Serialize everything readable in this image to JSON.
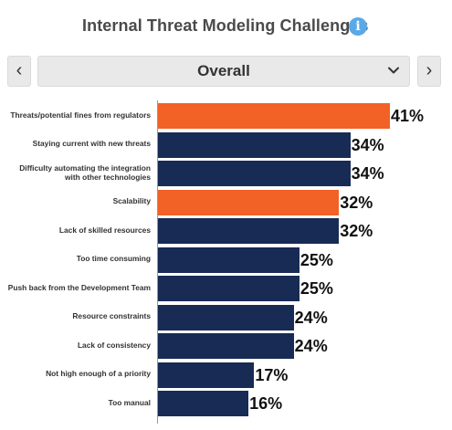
{
  "header": {
    "title": "Internal Threat Modeling Challenges",
    "info_icon": "info-icon"
  },
  "selector": {
    "prev_icon": "chevron-left-icon",
    "prev_glyph": "‹",
    "selected_value": "Overall",
    "dropdown_icon": "chevron-down-icon",
    "next_icon": "chevron-right-icon",
    "next_glyph": "›"
  },
  "colors": {
    "highlight": "#f26125",
    "default": "#172b55",
    "info": "#5aa9e6"
  },
  "chart_data": {
    "type": "bar",
    "orientation": "horizontal",
    "categories": [
      "Threats/potential fines from regulators",
      "Staying current with new threats",
      "Difficulty automating the integration with other technologies",
      "Scalability",
      "Lack of skilled resources",
      "Too time consuming",
      "Push back from the Development Team",
      "Resource constraints",
      "Lack of consistency",
      "Not high enough of a priority",
      "Too manual"
    ],
    "values": [
      41,
      34,
      34,
      32,
      32,
      25,
      25,
      24,
      24,
      17,
      16
    ],
    "value_labels": [
      "41%",
      "34%",
      "34%",
      "32%",
      "32%",
      "25%",
      "25%",
      "24%",
      "24%",
      "17%",
      "16%"
    ],
    "highlighted": [
      true,
      false,
      false,
      true,
      false,
      false,
      false,
      false,
      false,
      false,
      false
    ],
    "xlim": [
      0,
      41
    ],
    "grid": false,
    "legend": "none"
  }
}
